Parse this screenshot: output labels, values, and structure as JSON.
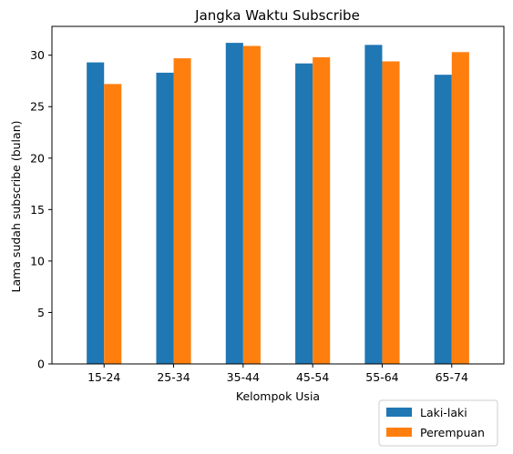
{
  "chart_data": {
    "type": "bar",
    "title": "Jangka Waktu Subscribe",
    "xlabel": "Kelompok Usia",
    "ylabel": "Lama sudah subscribe (bulan)",
    "categories": [
      "15-24",
      "25-34",
      "35-44",
      "45-54",
      "55-64",
      "65-74"
    ],
    "series": [
      {
        "name": "Laki-laki",
        "color": "#1f77b4",
        "values": [
          29.3,
          28.3,
          31.2,
          29.2,
          31.0,
          28.1
        ]
      },
      {
        "name": "Perempuan",
        "color": "#ff7f0e",
        "values": [
          27.2,
          29.7,
          30.9,
          29.8,
          29.4,
          30.3
        ]
      }
    ],
    "ylim": [
      0,
      32.8
    ],
    "yticks": [
      0,
      5,
      10,
      15,
      20,
      25,
      30
    ],
    "grid": false,
    "legend_position": "below-right"
  }
}
